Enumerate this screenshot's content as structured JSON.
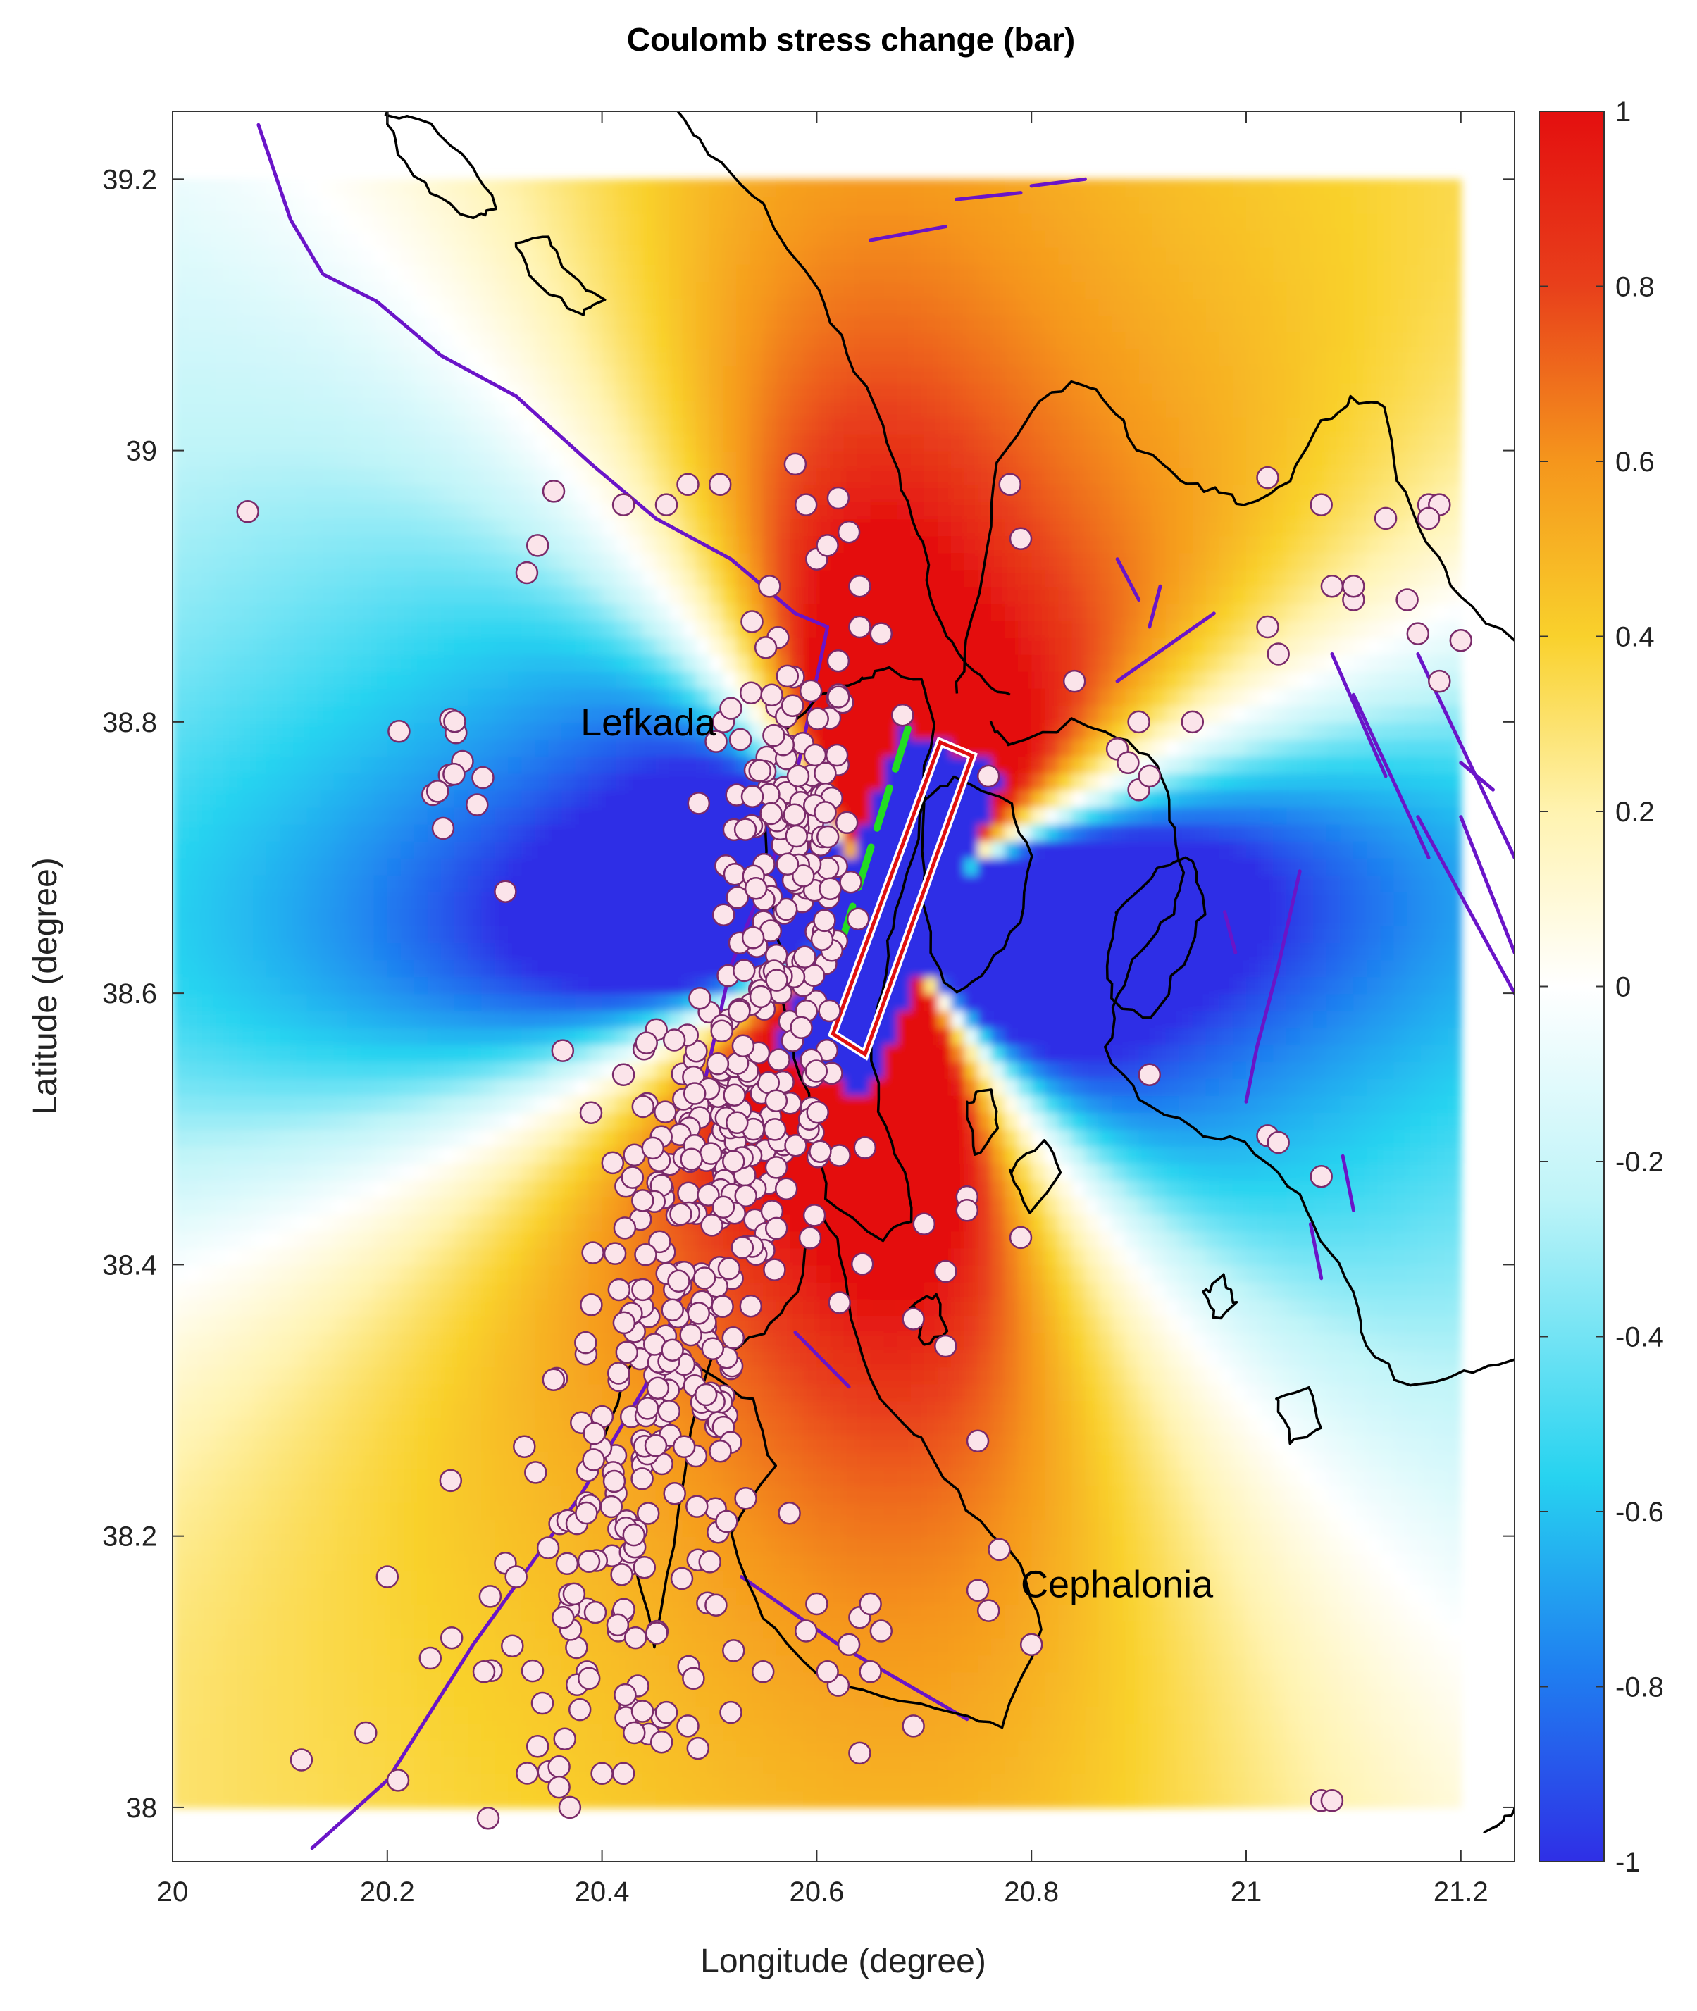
{
  "map": {
    "title": "Coulomb stress change (bar)",
    "xlabel": "Longitude (degree)",
    "ylabel": "Latitude  (degree)",
    "xlim": [
      20.0,
      21.25
    ],
    "ylim": [
      37.96,
      39.25
    ],
    "xticks": [
      {
        "value": 20.0,
        "label": "20"
      },
      {
        "value": 20.2,
        "label": "20.2"
      },
      {
        "value": 20.4,
        "label": "20.4"
      },
      {
        "value": 20.6,
        "label": "20.6"
      },
      {
        "value": 20.8,
        "label": "20.8"
      },
      {
        "value": 21.0,
        "label": "21"
      },
      {
        "value": 21.2,
        "label": "21.2"
      }
    ],
    "yticks": [
      {
        "value": 38.0,
        "label": "38"
      },
      {
        "value": 38.2,
        "label": "38.2"
      },
      {
        "value": 38.4,
        "label": "38.4"
      },
      {
        "value": 38.6,
        "label": "38.6"
      },
      {
        "value": 38.8,
        "label": "38.8"
      },
      {
        "value": 39.0,
        "label": "39"
      },
      {
        "value": 39.2,
        "label": "39.2"
      }
    ],
    "colorbar": {
      "min": -1,
      "max": 1,
      "ticks": [
        {
          "value": 1,
          "label": "1"
        },
        {
          "value": 0.8,
          "label": "0.8"
        },
        {
          "value": 0.6,
          "label": "0.6"
        },
        {
          "value": 0.4,
          "label": "0.4"
        },
        {
          "value": 0.2,
          "label": "0.2"
        },
        {
          "value": 0,
          "label": "0"
        },
        {
          "value": -0.2,
          "label": "-0.2"
        },
        {
          "value": -0.4,
          "label": "-0.4"
        },
        {
          "value": -0.6,
          "label": "-0.6"
        },
        {
          "value": -0.8,
          "label": "-0.8"
        },
        {
          "value": -1,
          "label": "-1"
        }
      ],
      "colormap": [
        "#2f2fe6",
        "#1f7ff0",
        "#27d3f0",
        "#bff4f8",
        "#ffffff",
        "#fff3b0",
        "#f9d12c",
        "#f5961c",
        "#e8401b",
        "#e40f0f"
      ]
    },
    "places": [
      {
        "name": "Lefkada",
        "lon": 20.38,
        "lat": 38.79
      },
      {
        "name": "Cephalonia",
        "lon": 20.79,
        "lat": 38.155
      }
    ],
    "colors": {
      "faults": "#6a14c8",
      "coastline": "#000000",
      "aftershock_fill": "#fbe4ea",
      "aftershock_edge": "#7a2a6a",
      "source_fault_outline": "#e01010",
      "rupture_trace": "#22dd22"
    },
    "source_fault": {
      "corners": [
        [
          20.715,
          38.785
        ],
        [
          20.745,
          38.775
        ],
        [
          20.645,
          38.555
        ],
        [
          20.615,
          38.57
        ]
      ]
    },
    "rupture_trace": {
      "points": [
        [
          20.685,
          38.795
        ],
        [
          20.62,
          38.63
        ]
      ]
    },
    "aftershocks_clusters": [
      {
        "lon": 20.575,
        "lat": 38.7,
        "sd_lon": 0.03,
        "sd_lat": 0.08,
        "count": 150
      },
      {
        "lon": 20.52,
        "lat": 38.5,
        "sd_lon": 0.045,
        "sd_lat": 0.05,
        "count": 170
      },
      {
        "lon": 20.46,
        "lat": 38.32,
        "sd_lon": 0.05,
        "sd_lat": 0.06,
        "count": 100
      },
      {
        "lon": 20.43,
        "lat": 38.17,
        "sd_lon": 0.06,
        "sd_lat": 0.07,
        "count": 90
      },
      {
        "lon": 20.25,
        "lat": 38.77,
        "sd_lon": 0.03,
        "sd_lat": 0.02,
        "count": 12
      }
    ],
    "aftershocks_scattered": [
      [
        20.07,
        38.955
      ],
      [
        20.31,
        38.675
      ],
      [
        20.33,
        38.91
      ],
      [
        20.34,
        38.93
      ],
      [
        20.355,
        38.97
      ],
      [
        20.42,
        38.96
      ],
      [
        20.46,
        38.96
      ],
      [
        20.48,
        38.975
      ],
      [
        20.51,
        38.975
      ],
      [
        20.58,
        38.99
      ],
      [
        20.59,
        38.96
      ],
      [
        20.62,
        38.965
      ],
      [
        20.6,
        38.92
      ],
      [
        20.61,
        38.93
      ],
      [
        20.63,
        38.94
      ],
      [
        20.64,
        38.9
      ],
      [
        20.64,
        38.87
      ],
      [
        20.66,
        38.865
      ],
      [
        20.62,
        38.845
      ],
      [
        20.68,
        38.805
      ],
      [
        20.78,
        38.975
      ],
      [
        20.79,
        38.935
      ],
      [
        20.76,
        38.76
      ],
      [
        20.84,
        38.83
      ],
      [
        20.9,
        38.8
      ],
      [
        20.88,
        38.78
      ],
      [
        20.89,
        38.77
      ],
      [
        20.9,
        38.75
      ],
      [
        20.91,
        38.76
      ],
      [
        20.95,
        38.8
      ],
      [
        21.02,
        38.87
      ],
      [
        21.03,
        38.85
      ],
      [
        21.02,
        38.98
      ],
      [
        21.07,
        38.96
      ],
      [
        21.08,
        38.9
      ],
      [
        21.1,
        38.89
      ],
      [
        21.1,
        38.9
      ],
      [
        21.13,
        38.95
      ],
      [
        21.15,
        38.89
      ],
      [
        21.16,
        38.865
      ],
      [
        21.17,
        38.96
      ],
      [
        21.18,
        38.96
      ],
      [
        21.18,
        38.83
      ],
      [
        21.2,
        38.86
      ],
      [
        21.17,
        38.95
      ],
      [
        20.91,
        38.54
      ],
      [
        20.42,
        38.54
      ],
      [
        20.41,
        38.475
      ],
      [
        20.72,
        38.395
      ],
      [
        20.74,
        38.45
      ],
      [
        20.74,
        38.44
      ],
      [
        20.79,
        38.42
      ],
      [
        20.7,
        38.43
      ],
      [
        20.72,
        38.34
      ],
      [
        20.69,
        38.36
      ],
      [
        20.75,
        38.27
      ],
      [
        20.77,
        38.19
      ],
      [
        20.75,
        38.16
      ],
      [
        20.76,
        38.145
      ],
      [
        20.8,
        38.12
      ],
      [
        20.64,
        38.14
      ],
      [
        20.65,
        38.15
      ],
      [
        20.66,
        38.13
      ],
      [
        20.63,
        38.12
      ],
      [
        20.6,
        38.15
      ],
      [
        20.59,
        38.13
      ],
      [
        20.62,
        38.09
      ],
      [
        20.65,
        38.1
      ],
      [
        20.61,
        38.1
      ],
      [
        20.55,
        38.1
      ],
      [
        20.52,
        38.07
      ],
      [
        20.69,
        38.06
      ],
      [
        20.64,
        38.04
      ],
      [
        21.07,
        38.005
      ],
      [
        21.08,
        38.005
      ],
      [
        21.02,
        38.495
      ],
      [
        21.03,
        38.49
      ],
      [
        21.07,
        38.465
      ],
      [
        20.12,
        38.035
      ],
      [
        20.18,
        38.055
      ],
      [
        20.2,
        38.17
      ],
      [
        20.21,
        38.02
      ],
      [
        20.24,
        38.11
      ],
      [
        20.26,
        38.125
      ],
      [
        20.29,
        38.1
      ],
      [
        20.31,
        38.18
      ],
      [
        20.32,
        38.17
      ],
      [
        20.34,
        38.045
      ],
      [
        20.36,
        38.03
      ],
      [
        20.36,
        38.015
      ],
      [
        20.37,
        38.0
      ],
      [
        20.4,
        38.025
      ],
      [
        20.42,
        38.025
      ],
      [
        20.43,
        38.055
      ],
      [
        20.46,
        38.07
      ],
      [
        20.48,
        38.06
      ],
      [
        20.56,
        38.79
      ],
      [
        20.54,
        38.745
      ],
      [
        20.49,
        38.74
      ],
      [
        20.52,
        38.81
      ]
    ]
  }
}
